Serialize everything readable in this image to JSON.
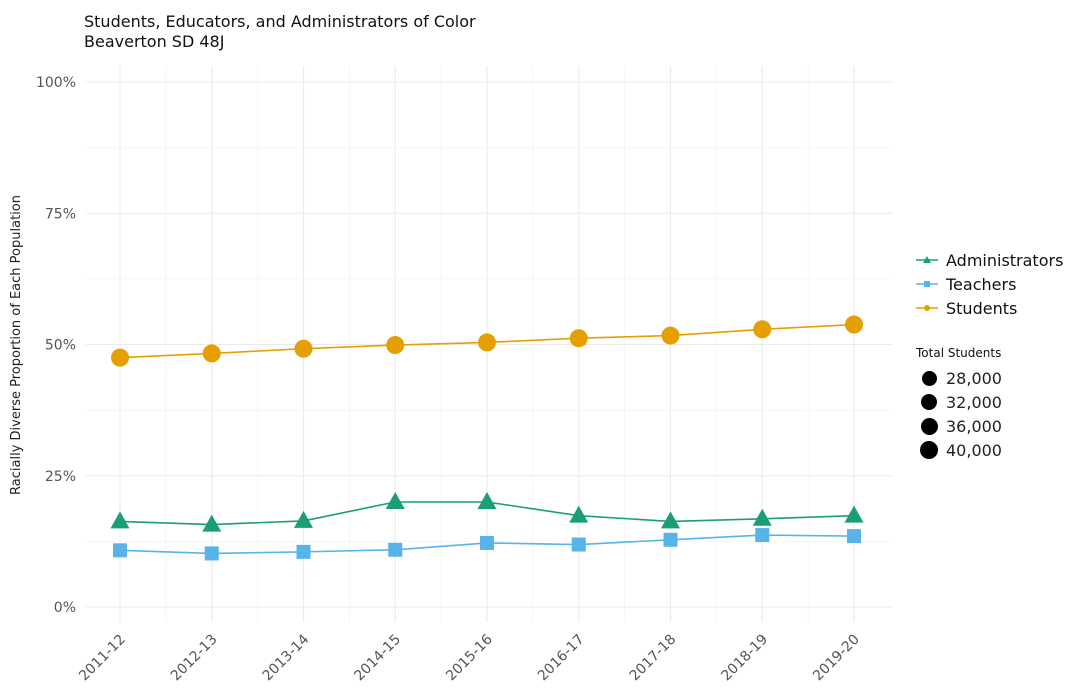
{
  "title": "Students, Educators, and Administrators of Color",
  "subtitle": "Beaverton SD 48J",
  "colors": {
    "Administrators": "#1a9e77",
    "Teachers": "#56b4e9",
    "Students": "#e69f00"
  },
  "size_legend": {
    "title": "Total Students",
    "items": [
      "28,000",
      "32,000",
      "36,000",
      "40,000"
    ]
  },
  "chart_data": {
    "type": "line",
    "title": "Students, Educators, and Administrators of Color",
    "subtitle": "Beaverton SD 48J",
    "xlabel": "",
    "ylabel": "Racially Diverse Proportion of Each Population",
    "categories": [
      "2011-12",
      "2012-13",
      "2013-14",
      "2014-15",
      "2015-16",
      "2016-17",
      "2017-18",
      "2018-19",
      "2019-20"
    ],
    "ylim": [
      0,
      1
    ],
    "yticks": [
      "0%",
      "25%",
      "50%",
      "75%",
      "100%"
    ],
    "grid": true,
    "legend_position": "right",
    "series": [
      {
        "name": "Administrators",
        "marker": "triangle",
        "values": [
          0.163,
          0.157,
          0.164,
          0.2,
          0.2,
          0.174,
          0.163,
          0.168,
          0.174
        ]
      },
      {
        "name": "Teachers",
        "marker": "square",
        "values": [
          0.108,
          0.102,
          0.105,
          0.109,
          0.122,
          0.119,
          0.128,
          0.137,
          0.135
        ]
      },
      {
        "name": "Students",
        "marker": "circle",
        "values": [
          0.475,
          0.483,
          0.492,
          0.499,
          0.504,
          0.512,
          0.517,
          0.529,
          0.538
        ]
      }
    ]
  }
}
